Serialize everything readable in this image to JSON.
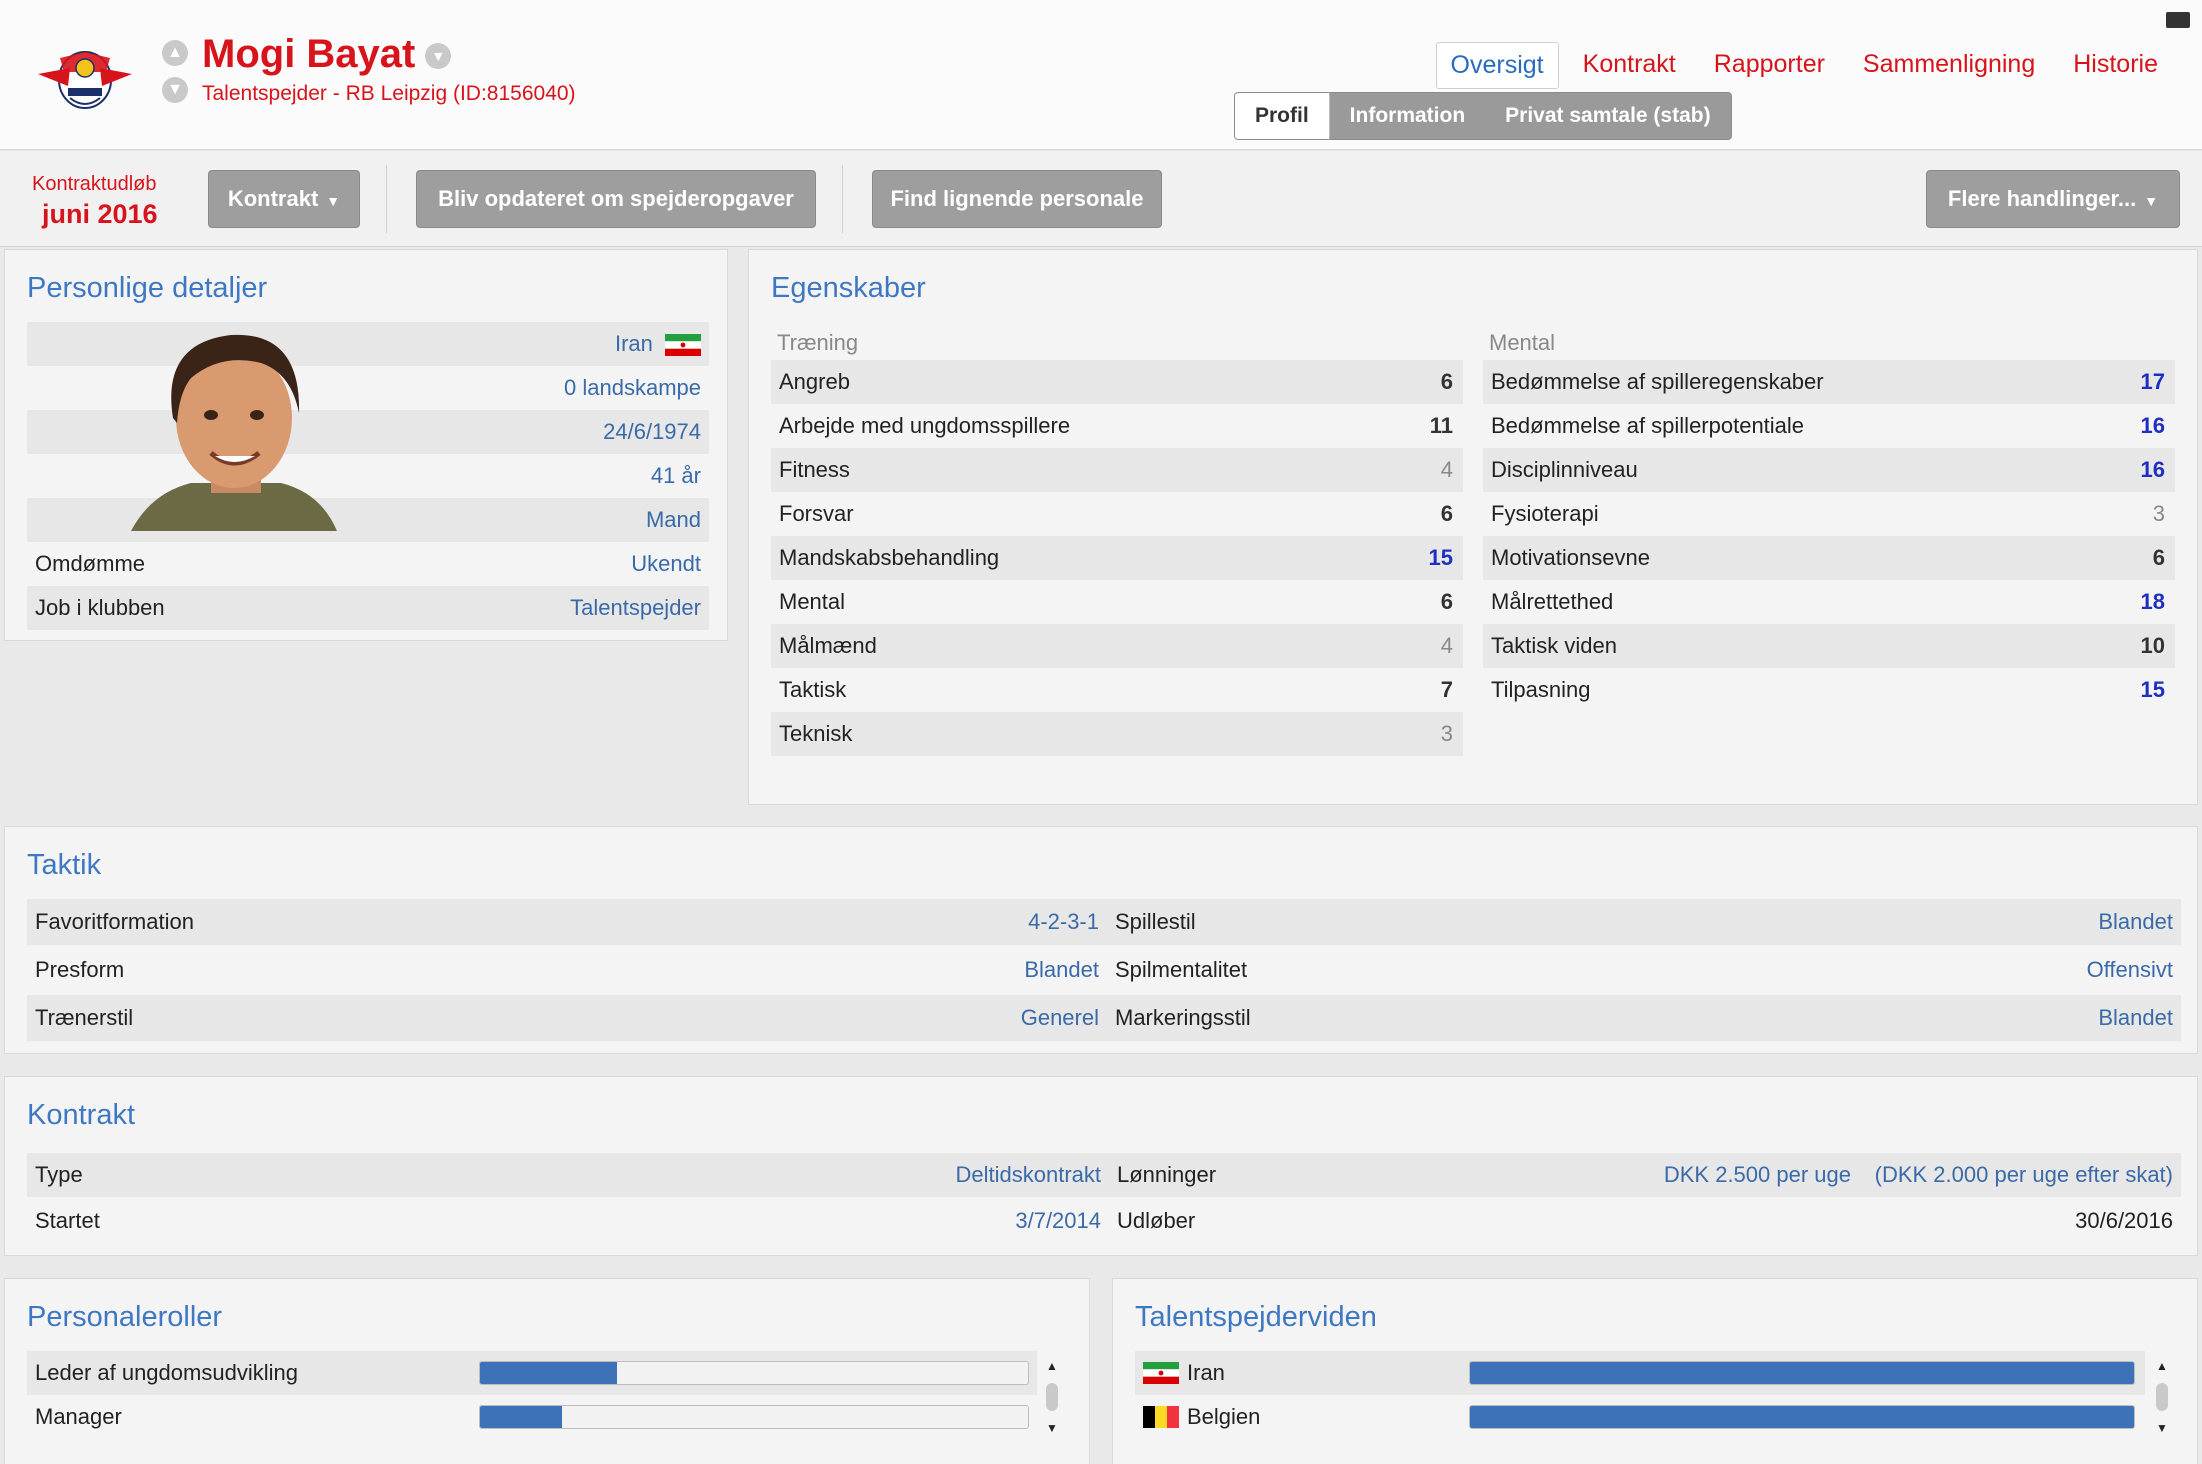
{
  "header": {
    "name": "Mogi Bayat",
    "subtitle": "Talentspejder - RB Leipzig (ID:8156040)",
    "logo_icon": "rb-leipzig-crest-icon",
    "main_tabs": [
      "Oversigt",
      "Kontrakt",
      "Rapporter",
      "Sammenligning",
      "Historie"
    ],
    "sub_tabs": [
      "Profil",
      "Information",
      "Privat samtale (stab)"
    ]
  },
  "toolbar": {
    "expiry_label": "Kontraktudløb",
    "expiry_value": "juni 2016",
    "contract_button": "Kontrakt",
    "scout_button": "Bliv opdateret om spejderopgaver",
    "similar_button": "Find lignende personale",
    "more_button": "Flere handlinger..."
  },
  "personal": {
    "title": "Personlige detaljer",
    "nationality": "Iran",
    "caps": "0 landskampe",
    "dob": "24/6/1974",
    "age": "41 år",
    "gender": "Mand",
    "reputation_label": "Omdømme",
    "reputation_value": "Ukendt",
    "job_label": "Job i klubben",
    "job_value": "Talentspejder"
  },
  "attributes": {
    "title": "Egenskaber",
    "training_head": "Træning",
    "mental_head": "Mental",
    "training": [
      {
        "label": "Angreb",
        "value": "6"
      },
      {
        "label": "Arbejde med ungdomsspillere",
        "value": "11"
      },
      {
        "label": "Fitness",
        "value": "4"
      },
      {
        "label": "Forsvar",
        "value": "6"
      },
      {
        "label": "Mandskabsbehandling",
        "value": "15"
      },
      {
        "label": "Mental",
        "value": "6"
      },
      {
        "label": "Målmænd",
        "value": "4"
      },
      {
        "label": "Taktisk",
        "value": "7"
      },
      {
        "label": "Teknisk",
        "value": "3"
      }
    ],
    "mental": [
      {
        "label": "Bedømmelse af spilleregenskaber",
        "value": "17"
      },
      {
        "label": "Bedømmelse af spillerpotentiale",
        "value": "16"
      },
      {
        "label": "Disciplinniveau",
        "value": "16"
      },
      {
        "label": "Fysioterapi",
        "value": "3"
      },
      {
        "label": "Motivationsevne",
        "value": "6"
      },
      {
        "label": "Målrettethed",
        "value": "18"
      },
      {
        "label": "Taktisk viden",
        "value": "10"
      },
      {
        "label": "Tilpasning",
        "value": "15"
      }
    ]
  },
  "tactics": {
    "title": "Taktik",
    "rows": [
      {
        "l1": "Favoritformation",
        "v1": "4-2-3-1",
        "l2": "Spillestil",
        "v2": "Blandet"
      },
      {
        "l1": "Presform",
        "v1": "Blandet",
        "l2": "Spilmentalitet",
        "v2": "Offensivt"
      },
      {
        "l1": "Trænerstil",
        "v1": "Generel",
        "l2": "Markeringsstil",
        "v2": "Blandet"
      }
    ]
  },
  "contract": {
    "title": "Kontrakt",
    "type_label": "Type",
    "type_value": "Deltidskontrakt",
    "wage_label": "Lønninger",
    "wage_value": "DKK 2.500 per uge",
    "wage_after_tax": "(DKK 2.000 per uge efter skat)",
    "start_label": "Startet",
    "start_value": "3/7/2014",
    "end_label": "Udløber",
    "end_value": "30/6/2016"
  },
  "roles": {
    "title": "Personaleroller",
    "items": [
      {
        "label": "Leder af ungdomsudvikling",
        "fraction": 0.25
      },
      {
        "label": "Manager",
        "fraction": 0.15
      }
    ]
  },
  "knowledge": {
    "title": "Talentspejderviden",
    "items": [
      {
        "label": "Iran",
        "flag": "iran-flag-icon",
        "fraction": 1.0
      },
      {
        "label": "Belgien",
        "flag": "belgium-flag-icon",
        "fraction": 1.0
      }
    ]
  },
  "colors": {
    "accent_red": "#d7141b",
    "title_blue": "#3f78c2",
    "bar_blue": "#3d72b9",
    "high_value": "#1e2fc2"
  }
}
